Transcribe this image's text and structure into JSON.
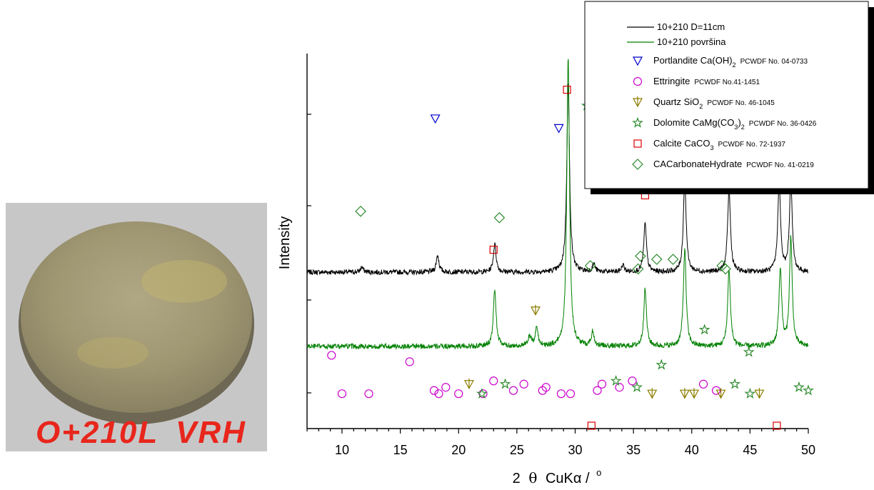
{
  "photo": {
    "label_left": "O+210L",
    "label_right": "VRH"
  },
  "chart_data": {
    "type": "line",
    "xlabel_prefix": "2",
    "xlabel_theta": "θ",
    "xlabel_main": "CuKα /",
    "xlabel_unit": "o",
    "ylabel": "Intensity",
    "xlim": [
      7,
      50
    ],
    "x_ticks": [
      10,
      15,
      20,
      25,
      30,
      35,
      40,
      45,
      50
    ],
    "series": [
      {
        "name": "10+210 D=11cm",
        "color": "#000000",
        "baseline": 0.0,
        "peaks": [
          [
            11.7,
            0.05
          ],
          [
            18.2,
            0.17
          ],
          [
            23.1,
            0.28
          ],
          [
            29.4,
            1.9
          ],
          [
            31.6,
            0.08
          ],
          [
            34.1,
            0.07
          ],
          [
            36.0,
            0.48
          ],
          [
            39.4,
            0.95
          ],
          [
            43.2,
            0.85
          ],
          [
            47.5,
            0.9
          ],
          [
            48.5,
            0.92
          ]
        ]
      },
      {
        "name": "10+210 površina",
        "color": "#008000",
        "baseline": 0.0,
        "peaks": [
          [
            23.1,
            0.55
          ],
          [
            26.1,
            0.1
          ],
          [
            26.7,
            0.18
          ],
          [
            29.4,
            2.8
          ],
          [
            31.5,
            0.14
          ],
          [
            36.0,
            0.55
          ],
          [
            39.4,
            0.95
          ],
          [
            43.2,
            0.75
          ],
          [
            47.6,
            0.75
          ],
          [
            48.5,
            1.05
          ]
        ]
      }
    ],
    "phases": [
      {
        "name": "Portlandite Ca(OH)",
        "sub": "2",
        "ref": "PCWDF No. 04-0733",
        "marker": "triangle-down",
        "color": "#0000cc",
        "points": [
          [
            18.0,
            0.96
          ],
          [
            28.6,
            0.93
          ],
          [
            34.0,
            0.98
          ],
          [
            36.6,
            0.92
          ],
          [
            47.1,
            0.94
          ]
        ]
      },
      {
        "name": "Ettringite",
        "sub": "",
        "ref": "PCWDF No.41-1451",
        "marker": "circle",
        "color": "#cc00cc",
        "points": [
          [
            9.1,
            0.22
          ],
          [
            15.8,
            0.2
          ],
          [
            10.0,
            0.1
          ],
          [
            12.3,
            0.1
          ],
          [
            17.9,
            0.11
          ],
          [
            18.3,
            0.1
          ],
          [
            18.9,
            0.12
          ],
          [
            20.0,
            0.1
          ],
          [
            22.1,
            0.1
          ],
          [
            23.0,
            0.14
          ],
          [
            24.7,
            0.11
          ],
          [
            25.6,
            0.13
          ],
          [
            27.2,
            0.11
          ],
          [
            27.5,
            0.12
          ],
          [
            28.8,
            0.1
          ],
          [
            29.6,
            0.1
          ],
          [
            31.9,
            0.11
          ],
          [
            32.3,
            0.13
          ],
          [
            33.8,
            0.12
          ],
          [
            34.9,
            0.14
          ],
          [
            41.0,
            0.13
          ],
          [
            42.1,
            0.11
          ]
        ]
      },
      {
        "name": "Quartz SiO",
        "sub": "2",
        "ref": "PCWDF No. 46-1045",
        "marker": "triangle-down-cross",
        "color": "#8b7d00",
        "points": [
          [
            20.9,
            0.13
          ],
          [
            26.6,
            0.36
          ],
          [
            36.6,
            0.1
          ],
          [
            39.4,
            0.1
          ],
          [
            40.2,
            0.1
          ],
          [
            42.5,
            0.1
          ],
          [
            45.8,
            0.1
          ]
        ]
      },
      {
        "name": "Dolomite CaMg(CO",
        "sub": "3",
        "sub2": "2",
        "ref": "PCWDF No. 36-0426",
        "marker": "star",
        "color": "#2e8b2e",
        "points": [
          [
            31.0,
            1.0
          ],
          [
            22.0,
            0.1
          ],
          [
            24.0,
            0.13
          ],
          [
            33.5,
            0.14
          ],
          [
            35.3,
            0.12
          ],
          [
            37.4,
            0.19
          ],
          [
            41.1,
            0.3
          ],
          [
            44.9,
            0.23
          ],
          [
            43.7,
            0.13
          ],
          [
            45.0,
            0.1
          ],
          [
            49.2,
            0.12
          ],
          [
            50.0,
            0.11
          ]
        ]
      },
      {
        "name": "Calcite CaCO",
        "sub": "3",
        "ref": "PCWDF No. 72-1937",
        "marker": "square",
        "color": "#dd0000",
        "points": [
          [
            29.3,
            1.05
          ],
          [
            36.0,
            0.72
          ],
          [
            39.4,
            0.95
          ],
          [
            43.2,
            0.95
          ],
          [
            47.6,
            0.9
          ],
          [
            48.5,
            0.9
          ],
          [
            23.0,
            0.55
          ],
          [
            31.4,
            0.0
          ],
          [
            47.3,
            0.0
          ]
        ]
      },
      {
        "name": "CACarbonateHydrate",
        "sub": "",
        "ref": "PCWDF No. 41-0219",
        "marker": "diamond",
        "color": "#2e8b2e",
        "points": [
          [
            11.6,
            0.67
          ],
          [
            23.5,
            0.65
          ],
          [
            31.3,
            0.5
          ],
          [
            35.4,
            0.49
          ],
          [
            35.6,
            0.53
          ],
          [
            37.0,
            0.52
          ],
          [
            38.4,
            0.52
          ],
          [
            42.6,
            0.5
          ],
          [
            42.9,
            0.49
          ]
        ]
      }
    ]
  }
}
